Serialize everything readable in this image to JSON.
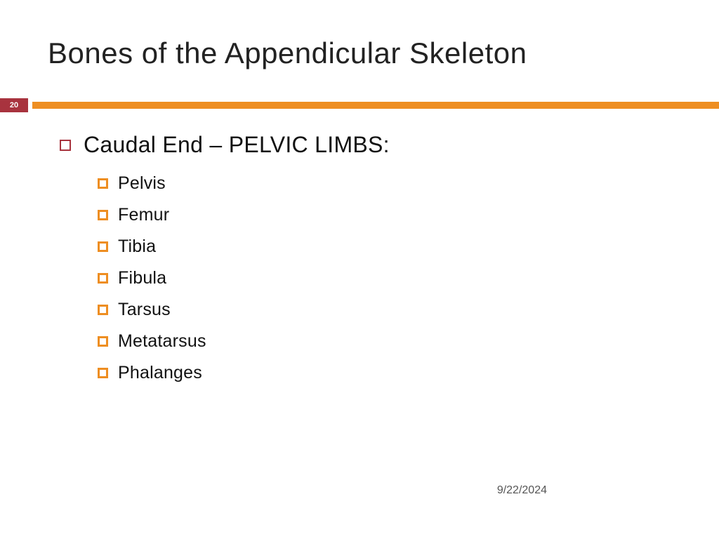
{
  "slide": {
    "title": "Bones of the Appendicular Skeleton",
    "page_number": "20",
    "main_bullet": "Caudal End – PELVIC LIMBS:",
    "sub_bullets": [
      "Pelvis",
      "Femur",
      "Tibia",
      "Fibula",
      "Tarsus",
      "Metatarsus",
      "Phalanges"
    ],
    "footer_date": "9/22/2024"
  },
  "colors": {
    "accent_orange": "#ee8e22",
    "accent_maroon": "#a8333e",
    "text_primary": "#111111",
    "text_secondary": "#555555",
    "background": "#ffffff"
  },
  "typography": {
    "title_fontsize": 42,
    "main_bullet_fontsize": 32,
    "sub_bullet_fontsize": 25,
    "page_number_fontsize": 11,
    "footer_fontsize": 16
  }
}
